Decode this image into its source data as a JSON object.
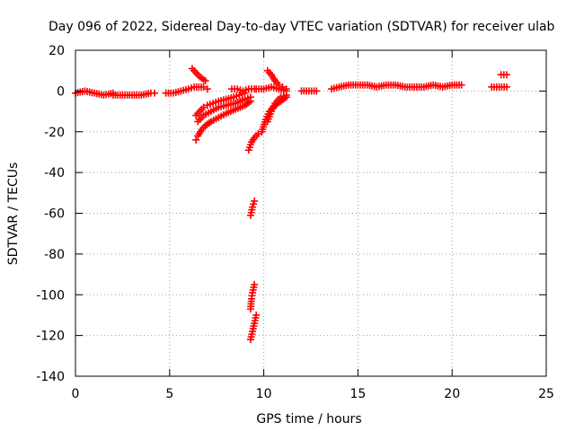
{
  "chart_data": {
    "type": "scatter",
    "title": "Day 096 of 2022, Sidereal Day-to-day VTEC variation (SDTVAR) for receiver ulab",
    "xlabel": "GPS time / hours",
    "ylabel": "SDTVAR / TECUs",
    "xlim": [
      0,
      25
    ],
    "ylim": [
      -140,
      20
    ],
    "xticks": [
      0,
      5,
      10,
      15,
      20,
      25
    ],
    "yticks": [
      20,
      0,
      -20,
      -40,
      -60,
      -80,
      -100,
      -120,
      -140
    ],
    "grid": true,
    "marker": "plus",
    "color": "#ff0000",
    "series": [
      {
        "name": "seg1",
        "x": [
          0.0,
          0.5,
          1.0,
          1.5,
          2.0
        ],
        "y": [
          -1,
          0,
          -1,
          -2,
          -1
        ]
      },
      {
        "name": "seg2",
        "x": [
          2.0,
          2.5,
          3.0,
          3.5,
          4.0,
          4.2
        ],
        "y": [
          -2,
          -2,
          -2,
          -2,
          -1,
          -1
        ]
      },
      {
        "name": "seg3",
        "x": [
          4.8,
          5.2,
          5.6,
          6.0,
          6.3,
          6.8,
          7.0
        ],
        "y": [
          -1,
          -1,
          0,
          1,
          2,
          2,
          1
        ]
      },
      {
        "name": "seg4",
        "x": [
          6.2,
          6.4,
          6.6,
          6.9
        ],
        "y": [
          11,
          9,
          7,
          5
        ]
      },
      {
        "name": "seg5a",
        "x": [
          6.4,
          6.6,
          6.8,
          7.0,
          7.3,
          7.6,
          8.0,
          8.4,
          8.7,
          9.0
        ],
        "y": [
          -12,
          -10,
          -8,
          -7,
          -6,
          -5,
          -4,
          -3,
          -2,
          -1
        ]
      },
      {
        "name": "seg5b",
        "x": [
          6.4,
          6.5,
          6.7,
          6.9,
          7.2,
          7.6,
          8.0,
          8.5,
          9.0,
          9.3
        ],
        "y": [
          -24,
          -22,
          -19,
          -17,
          -15,
          -13,
          -11,
          -9,
          -7,
          -5
        ]
      },
      {
        "name": "seg5c",
        "x": [
          6.5,
          6.8,
          7.2,
          7.6,
          8.0,
          8.5,
          9.0,
          9.3
        ],
        "y": [
          -15,
          -12,
          -10,
          -8,
          -7,
          -6,
          -4,
          -3
        ]
      },
      {
        "name": "seg6",
        "x": [
          8.3,
          8.6,
          8.9,
          9.2,
          9.5
        ],
        "y": [
          1,
          1,
          0,
          1,
          1
        ]
      },
      {
        "name": "seg7",
        "x": [
          9.2,
          9.35,
          9.5,
          9.7,
          9.9
        ],
        "y": [
          -29,
          -25,
          -23,
          -21,
          -20
        ]
      },
      {
        "name": "seg8",
        "x": [
          9.3,
          9.4,
          9.5
        ],
        "y": [
          -61,
          -57,
          -54
        ]
      },
      {
        "name": "seg9",
        "x": [
          9.3,
          9.35,
          9.4,
          9.5
        ],
        "y": [
          -107,
          -102,
          -99,
          -95
        ]
      },
      {
        "name": "seg10",
        "x": [
          9.3,
          9.4,
          9.5,
          9.6
        ],
        "y": [
          -122,
          -118,
          -114,
          -110
        ]
      },
      {
        "name": "seg11",
        "x": [
          9.9,
          10.1,
          10.3,
          10.6,
          10.9,
          11.2
        ],
        "y": [
          -20,
          -14,
          -10,
          -7,
          -5,
          -3
        ]
      },
      {
        "name": "seg12",
        "x": [
          10.2,
          10.4,
          10.6,
          10.9,
          11.2
        ],
        "y": [
          -15,
          -10,
          -6,
          -3,
          -2
        ]
      },
      {
        "name": "seg13",
        "x": [
          10.2,
          10.4,
          10.6,
          10.8,
          11.0,
          11.2
        ],
        "y": [
          10,
          8,
          5,
          3,
          2,
          1
        ]
      },
      {
        "name": "seg14",
        "x": [
          9.6,
          10.0,
          10.4,
          10.8,
          11.2
        ],
        "y": [
          1,
          1,
          2,
          1,
          0
        ]
      },
      {
        "name": "seg15",
        "x": [
          12.0,
          12.4,
          12.8
        ],
        "y": [
          0,
          0,
          0
        ]
      },
      {
        "name": "seg16",
        "x": [
          13.6,
          14.0,
          14.5,
          15.0,
          15.5,
          16.0,
          16.5,
          17.0,
          17.5,
          18.0,
          18.5,
          19.0,
          19.5,
          20.0,
          20.5
        ],
        "y": [
          1,
          2,
          3,
          3,
          3,
          2,
          3,
          3,
          2,
          2,
          2,
          3,
          2,
          3,
          3
        ]
      },
      {
        "name": "seg17",
        "x": [
          22.1,
          22.5,
          22.9
        ],
        "y": [
          2,
          2,
          2
        ]
      },
      {
        "name": "seg18",
        "x": [
          22.6,
          22.9
        ],
        "y": [
          8,
          8
        ]
      }
    ]
  }
}
